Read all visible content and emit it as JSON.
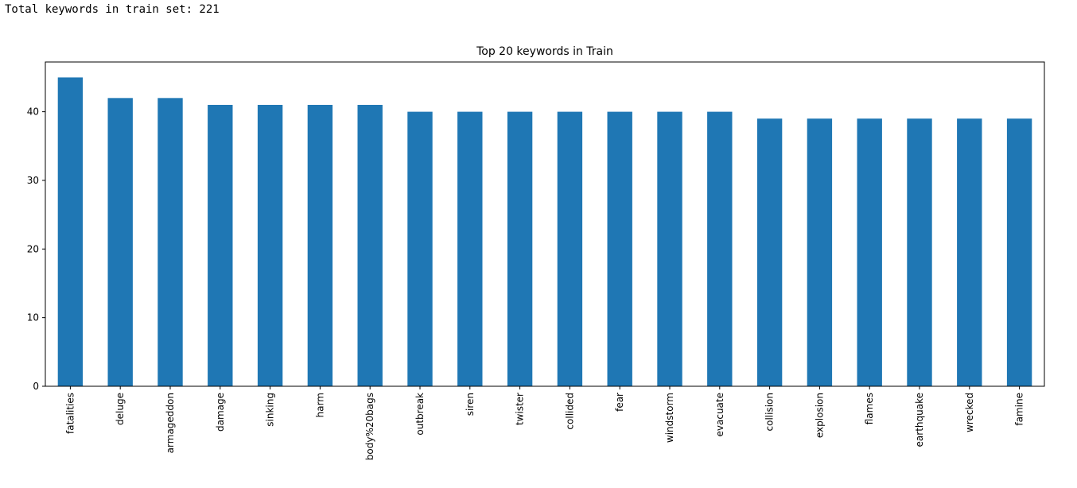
{
  "output": {
    "text": "Total keywords in train set: 221"
  },
  "chart_data": {
    "type": "bar",
    "title": "Top 20 keywords in Train",
    "xlabel": "",
    "ylabel": "",
    "categories": [
      "fatalities",
      "deluge",
      "armageddon",
      "damage",
      "sinking",
      "harm",
      "body%20bags",
      "outbreak",
      "siren",
      "twister",
      "collided",
      "fear",
      "windstorm",
      "evacuate",
      "collision",
      "explosion",
      "flames",
      "earthquake",
      "wrecked",
      "famine"
    ],
    "values": [
      45,
      42,
      42,
      41,
      41,
      41,
      41,
      40,
      40,
      40,
      40,
      40,
      40,
      40,
      39,
      39,
      39,
      39,
      39,
      39
    ],
    "ylim": [
      0,
      47.25
    ],
    "yticks": [
      0,
      10,
      20,
      30,
      40
    ],
    "bar_color": "#1f77b4",
    "grid": false,
    "legend": "none"
  }
}
